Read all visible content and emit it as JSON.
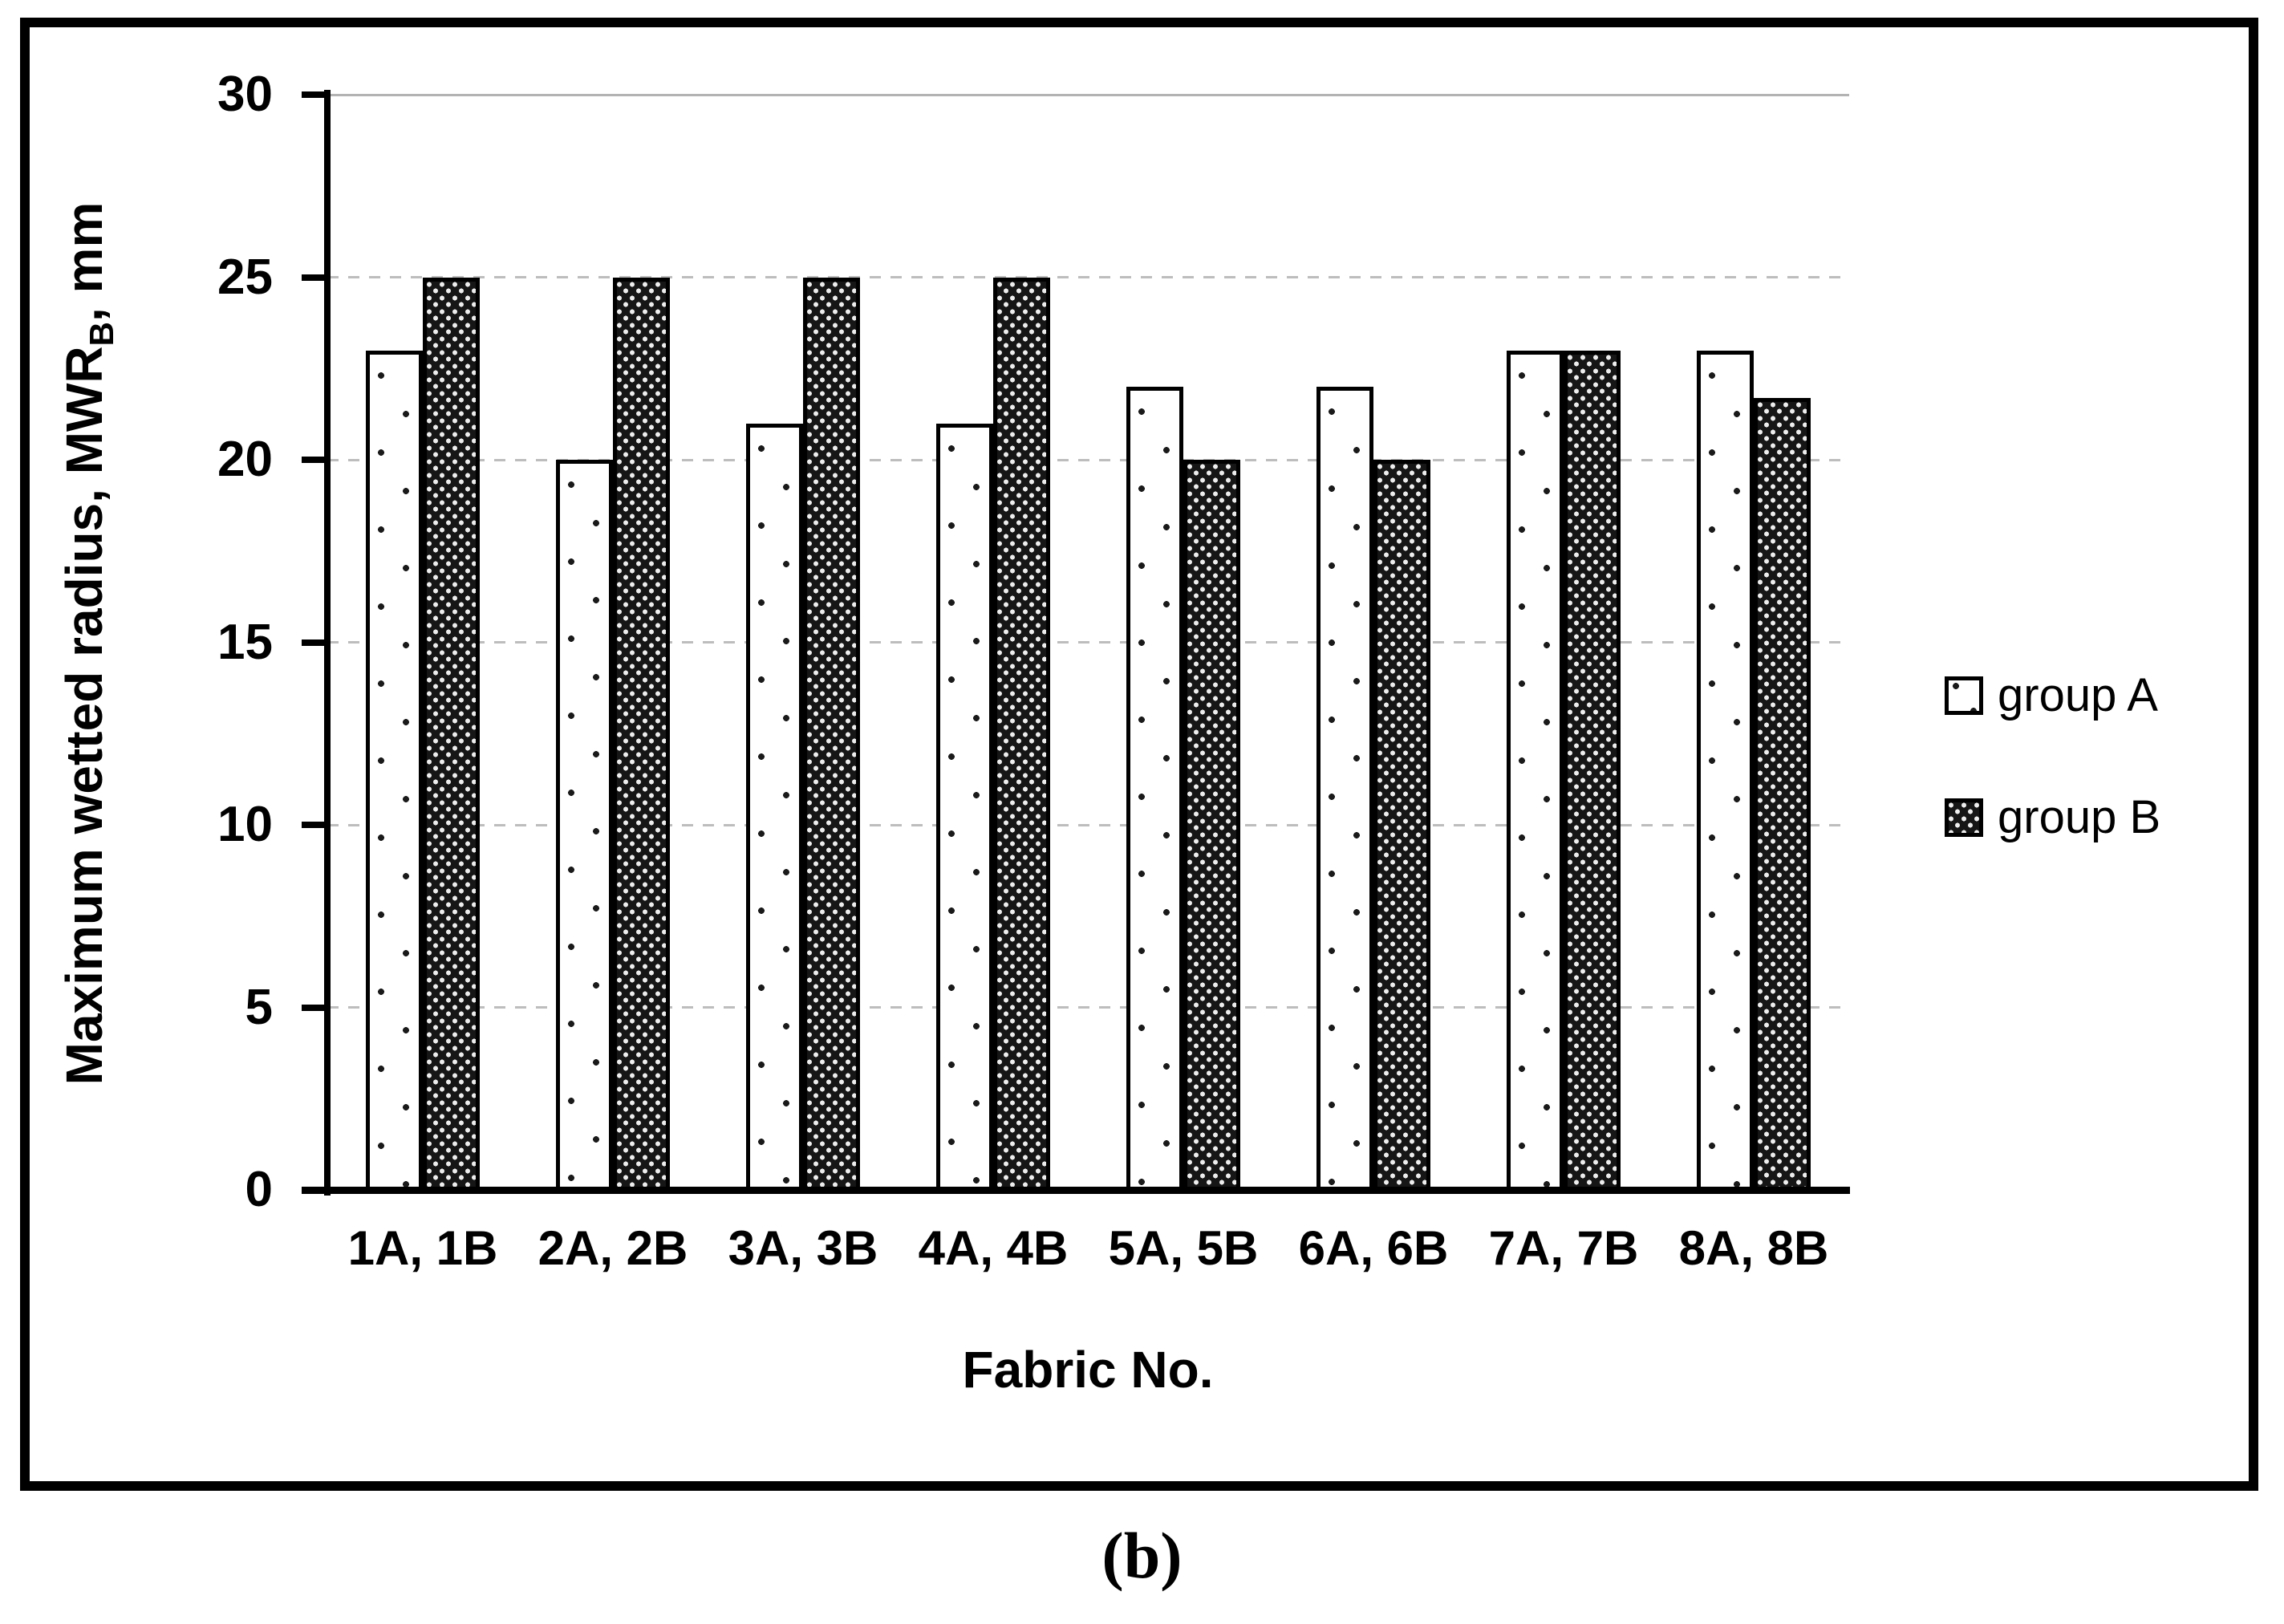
{
  "figure": {
    "caption": "(b)",
    "chart_data": {
      "type": "bar",
      "title": "",
      "xlabel": "Fabric No.",
      "ylabel": "Maximum wetted radius, MWRB, mm",
      "ylabel_parts": {
        "prefix": "Maximum wetted radius, MWR",
        "subscript": "B",
        "suffix": ", mm"
      },
      "categories": [
        "1A, 1B",
        "2A, 2B",
        "3A, 3B",
        "4A, 4B",
        "5A, 5B",
        "6A, 6B",
        "7A, 7B",
        "8A, 8B"
      ],
      "series": [
        {
          "name": "group A",
          "pattern": "sparse-black-dots-on-white",
          "values": [
            23,
            20,
            21,
            21,
            22,
            22,
            23,
            23
          ]
        },
        {
          "name": "group B",
          "pattern": "dense-white-dots-on-black",
          "values": [
            25,
            25,
            25,
            25,
            20,
            20,
            23,
            21.7
          ]
        }
      ],
      "ylim": [
        0,
        30
      ],
      "ytick_step": 5,
      "yticks": [
        0,
        5,
        10,
        15,
        20,
        25,
        30
      ],
      "grid": "horizontal-dashed",
      "legend_position": "right-middle",
      "colors": {
        "bar_a_fill": "#ffffff",
        "bar_b_fill": "#161616",
        "bar_border": "#000000",
        "gridline": "#bdbdbd",
        "axis": "#000000",
        "text": "#000000",
        "background": "#ffffff"
      }
    }
  }
}
